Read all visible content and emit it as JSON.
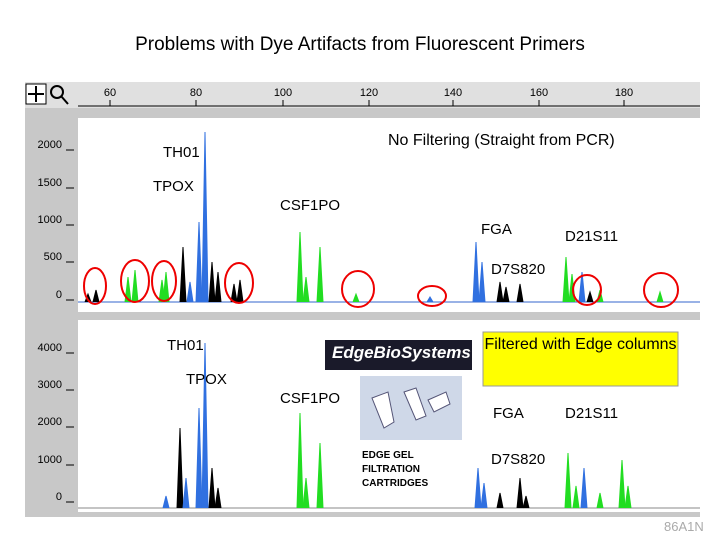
{
  "title": "Problems with Dye Artifacts from Fluorescent Primers",
  "toolbar": {
    "ticks": [
      "60",
      "80",
      "100",
      "120",
      "140",
      "160",
      "180"
    ]
  },
  "panels": [
    {
      "caption": "No Filtering (Straight from PCR)",
      "yticks": [
        "2000",
        "1500",
        "1000",
        "500",
        "0"
      ],
      "loci": [
        "TH01",
        "TPOX",
        "CSF1PO",
        "FGA",
        "D21S11",
        "D7S820"
      ]
    },
    {
      "caption": "Filtered with Edge columns",
      "yticks": [
        "4000",
        "3000",
        "2000",
        "1000",
        "0"
      ],
      "loci": [
        "TH01",
        "TPOX",
        "CSF1PO",
        "FGA",
        "D21S11",
        "D7S820"
      ],
      "logo": "EdgeBioSystems",
      "product": [
        "EDGE GEL",
        "FILTRATION",
        "CARTRIDGES"
      ]
    }
  ],
  "footer": "86A1N"
}
